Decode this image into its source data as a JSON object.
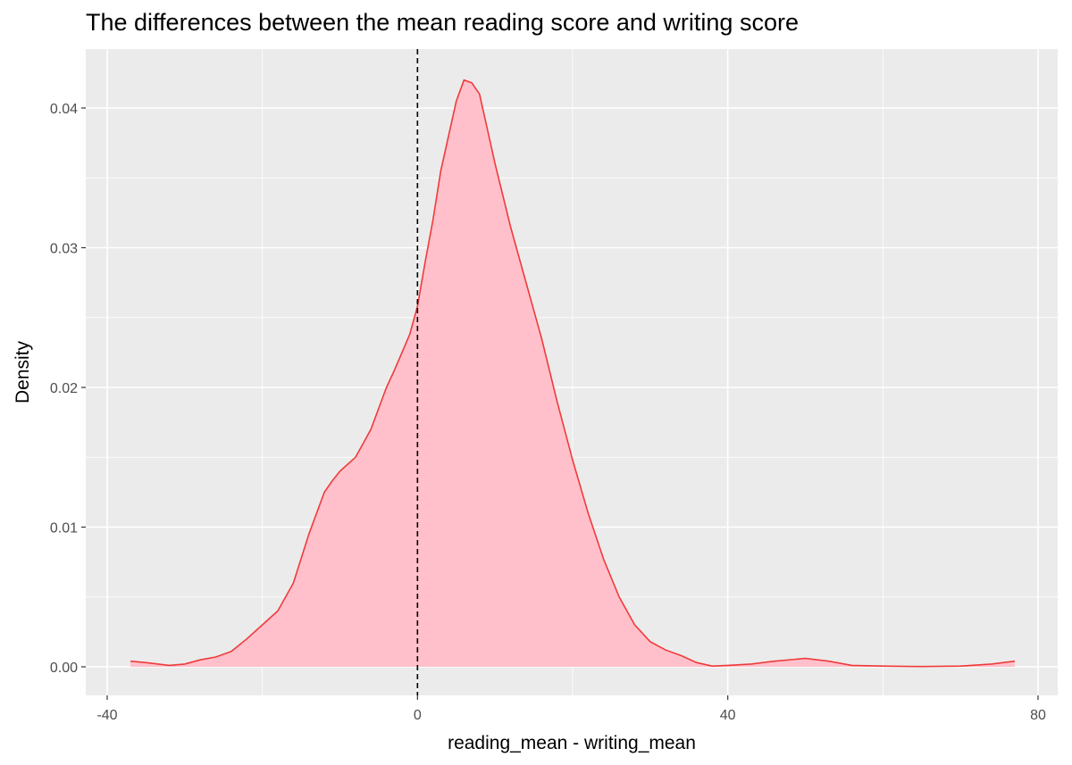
{
  "chart_data": {
    "type": "area",
    "title": "The differences between the mean reading score and writing score",
    "xlabel": "reading_mean - writing_mean",
    "ylabel": "Density",
    "xlim": [
      -40,
      80
    ],
    "ylim": [
      0,
      0.043
    ],
    "x_ticks": [
      -40,
      0,
      40,
      80
    ],
    "x_tick_labels": [
      "-40",
      "0",
      "40",
      "80"
    ],
    "y_ticks": [
      0.0,
      0.01,
      0.02,
      0.03,
      0.04
    ],
    "y_tick_labels": [
      "0.00",
      "0.01",
      "0.02",
      "0.03",
      "0.04"
    ],
    "grid": true,
    "legend": "none",
    "reference_line": {
      "x": 0,
      "style": "dashed",
      "color": "#000000"
    },
    "series": [
      {
        "fill": "#ffc0cb",
        "line_color": "#f03a3a",
        "x": [
          -37,
          -35,
          -32,
          -30,
          -28,
          -26,
          -24,
          -22,
          -20,
          -18,
          -16,
          -14,
          -12,
          -11,
          -10,
          -9,
          -8,
          -7,
          -6,
          -5,
          -4,
          -3,
          -2,
          -1,
          0,
          1,
          2,
          3,
          4,
          5,
          6,
          7,
          8,
          9,
          10,
          12,
          14,
          16,
          18,
          20,
          22,
          24,
          26,
          28,
          30,
          32,
          34,
          36,
          38,
          40,
          43,
          46,
          50,
          53,
          56,
          60,
          65,
          70,
          74,
          77
        ],
        "y": [
          0.0004,
          0.0003,
          0.0001,
          0.0002,
          0.0005,
          0.0007,
          0.0011,
          0.002,
          0.003,
          0.004,
          0.006,
          0.0095,
          0.0125,
          0.0133,
          0.014,
          0.0145,
          0.015,
          0.016,
          0.017,
          0.0185,
          0.02,
          0.0212,
          0.0225,
          0.0238,
          0.0258,
          0.029,
          0.032,
          0.0355,
          0.038,
          0.0405,
          0.042,
          0.0418,
          0.041,
          0.0385,
          0.036,
          0.0315,
          0.0275,
          0.0235,
          0.019,
          0.0148,
          0.011,
          0.0077,
          0.005,
          0.003,
          0.0018,
          0.0012,
          0.0008,
          0.0003,
          5e-05,
          0.0001,
          0.0002,
          0.0004,
          0.0006,
          0.0004,
          0.0001,
          5e-05,
          2e-05,
          5e-05,
          0.0002,
          0.0004
        ]
      }
    ]
  }
}
